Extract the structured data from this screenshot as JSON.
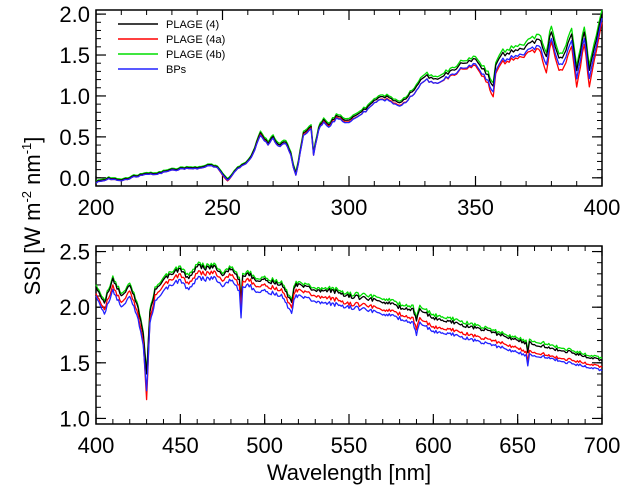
{
  "chart_data": [
    {
      "type": "line",
      "panel": "top",
      "xlim": [
        200,
        400
      ],
      "ylim": [
        -0.1,
        2.05
      ],
      "xticks": [
        200,
        250,
        300,
        350,
        400
      ],
      "xtick_labels": [
        "200",
        "250",
        "300",
        "350",
        "400"
      ],
      "yticks": [
        0.0,
        0.5,
        1.0,
        1.5,
        2.0
      ],
      "ytick_labels": [
        "0.0",
        "0.5",
        "1.0",
        "1.5",
        "2.0"
      ],
      "legend": {
        "placement": "top-left"
      },
      "series": [
        {
          "name": "PLAGE (4)",
          "color": "#000000"
        },
        {
          "name": "PLAGE (4a)",
          "color": "#ff0000"
        },
        {
          "name": "PLAGE (4b)",
          "color": "#00dd00"
        },
        {
          "name": "BPs",
          "color": "#2222ff"
        }
      ],
      "x": [
        200,
        205,
        210,
        215,
        220,
        225,
        230,
        235,
        240,
        245,
        248,
        250,
        252,
        254,
        256,
        260,
        262,
        265,
        268,
        270,
        272,
        275,
        277,
        278,
        279,
        280,
        282,
        285,
        286,
        288,
        290,
        292,
        295,
        300,
        305,
        310,
        315,
        320,
        325,
        330,
        335,
        340,
        345,
        350,
        355,
        357,
        358,
        360,
        365,
        370,
        375,
        378,
        380,
        383,
        385,
        388,
        390,
        393,
        395,
        397,
        400
      ],
      "y_plage4": [
        -0.05,
        0.0,
        -0.03,
        0.02,
        0.05,
        0.06,
        0.1,
        0.12,
        0.12,
        0.16,
        0.13,
        0.05,
        -0.02,
        0.05,
        0.12,
        0.2,
        0.3,
        0.55,
        0.42,
        0.5,
        0.4,
        0.45,
        0.3,
        0.15,
        0.05,
        0.2,
        0.55,
        0.62,
        0.3,
        0.6,
        0.72,
        0.65,
        0.75,
        0.7,
        0.8,
        0.95,
        1.0,
        0.9,
        1.05,
        1.25,
        1.2,
        1.3,
        1.4,
        1.45,
        1.25,
        1.1,
        1.35,
        1.5,
        1.55,
        1.6,
        1.7,
        1.5,
        1.8,
        1.45,
        1.5,
        1.75,
        1.3,
        1.8,
        1.3,
        1.6,
        2.0
      ],
      "y_plage4a": [
        -0.06,
        -0.01,
        -0.04,
        0.01,
        0.04,
        0.05,
        0.09,
        0.11,
        0.11,
        0.15,
        0.12,
        0.03,
        -0.04,
        0.04,
        0.11,
        0.19,
        0.28,
        0.53,
        0.4,
        0.48,
        0.38,
        0.43,
        0.28,
        0.13,
        0.03,
        0.18,
        0.53,
        0.6,
        0.28,
        0.58,
        0.7,
        0.63,
        0.73,
        0.68,
        0.77,
        0.92,
        0.97,
        0.87,
        1.0,
        1.2,
        1.15,
        1.24,
        1.33,
        1.37,
        1.15,
        0.97,
        1.25,
        1.4,
        1.45,
        1.5,
        1.58,
        1.3,
        1.68,
        1.3,
        1.35,
        1.6,
        1.1,
        1.65,
        1.1,
        1.45,
        1.9
      ],
      "y_plage4b": [
        -0.04,
        0.01,
        -0.02,
        0.03,
        0.06,
        0.07,
        0.11,
        0.13,
        0.13,
        0.17,
        0.14,
        0.06,
        -0.01,
        0.06,
        0.13,
        0.21,
        0.31,
        0.57,
        0.44,
        0.52,
        0.42,
        0.47,
        0.32,
        0.17,
        0.07,
        0.22,
        0.57,
        0.64,
        0.32,
        0.62,
        0.74,
        0.67,
        0.77,
        0.72,
        0.82,
        0.97,
        1.02,
        0.92,
        1.07,
        1.28,
        1.23,
        1.33,
        1.43,
        1.48,
        1.29,
        1.14,
        1.38,
        1.54,
        1.6,
        1.65,
        1.76,
        1.55,
        1.87,
        1.5,
        1.56,
        1.82,
        1.35,
        1.86,
        1.36,
        1.66,
        2.05
      ],
      "y_bps": [
        -0.06,
        -0.01,
        -0.04,
        0.01,
        0.04,
        0.05,
        0.09,
        0.11,
        0.11,
        0.15,
        0.12,
        0.04,
        -0.03,
        0.04,
        0.11,
        0.19,
        0.28,
        0.52,
        0.4,
        0.48,
        0.38,
        0.43,
        0.28,
        0.13,
        0.03,
        0.18,
        0.52,
        0.59,
        0.28,
        0.58,
        0.69,
        0.62,
        0.72,
        0.67,
        0.77,
        0.92,
        0.96,
        0.86,
        1.0,
        1.2,
        1.15,
        1.25,
        1.34,
        1.39,
        1.18,
        1.03,
        1.28,
        1.43,
        1.48,
        1.53,
        1.62,
        1.4,
        1.72,
        1.37,
        1.42,
        1.67,
        1.2,
        1.72,
        1.2,
        1.52,
        1.95
      ]
    },
    {
      "type": "line",
      "panel": "bottom",
      "xlim": [
        400,
        700
      ],
      "ylim": [
        0.95,
        2.55
      ],
      "xticks": [
        400,
        450,
        500,
        550,
        600,
        650,
        700
      ],
      "xtick_labels": [
        "400",
        "450",
        "500",
        "550",
        "600",
        "650",
        "700"
      ],
      "yticks": [
        1.0,
        1.5,
        2.0,
        2.5
      ],
      "ytick_labels": [
        "1.0",
        "1.5",
        "2.0",
        "2.5"
      ],
      "xlabel": "Wavelength [nm]",
      "ylabel": "SSI [W m-2 nm-1]",
      "series": [
        {
          "name": "PLAGE (4)",
          "color": "#000000"
        },
        {
          "name": "PLAGE (4a)",
          "color": "#ff0000"
        },
        {
          "name": "PLAGE (4b)",
          "color": "#00dd00"
        },
        {
          "name": "BPs",
          "color": "#2222ff"
        }
      ],
      "x": [
        400,
        405,
        410,
        415,
        420,
        425,
        428,
        430,
        432,
        435,
        440,
        445,
        450,
        455,
        460,
        465,
        470,
        475,
        480,
        485,
        486,
        487,
        490,
        495,
        500,
        510,
        516,
        518,
        520,
        530,
        540,
        550,
        560,
        570,
        580,
        588,
        590,
        592,
        600,
        610,
        620,
        630,
        640,
        650,
        655,
        656,
        657,
        660,
        670,
        680,
        690,
        700
      ],
      "y_plage4": [
        2.18,
        2.05,
        2.25,
        2.1,
        2.2,
        2.0,
        1.75,
        1.4,
        1.95,
        2.15,
        2.25,
        2.3,
        2.35,
        2.25,
        2.38,
        2.35,
        2.37,
        2.3,
        2.35,
        2.25,
        2.05,
        2.28,
        2.3,
        2.25,
        2.25,
        2.2,
        2.05,
        2.2,
        2.2,
        2.15,
        2.15,
        2.1,
        2.08,
        2.05,
        2.0,
        1.98,
        1.88,
        1.98,
        1.9,
        1.87,
        1.83,
        1.8,
        1.75,
        1.7,
        1.68,
        1.6,
        1.68,
        1.67,
        1.63,
        1.6,
        1.56,
        1.52
      ],
      "y_plage4a": [
        2.12,
        1.99,
        2.19,
        2.04,
        2.15,
        1.94,
        1.68,
        1.17,
        1.88,
        2.1,
        2.2,
        2.25,
        2.3,
        2.2,
        2.32,
        2.3,
        2.32,
        2.25,
        2.3,
        2.2,
        1.98,
        2.23,
        2.25,
        2.2,
        2.2,
        2.15,
        2.0,
        2.15,
        2.15,
        2.1,
        2.08,
        2.03,
        2.02,
        1.98,
        1.94,
        1.9,
        1.8,
        1.9,
        1.82,
        1.8,
        1.76,
        1.72,
        1.68,
        1.63,
        1.6,
        1.52,
        1.6,
        1.6,
        1.56,
        1.53,
        1.5,
        1.46
      ],
      "y_plage4b": [
        2.2,
        2.07,
        2.27,
        2.12,
        2.22,
        2.02,
        1.77,
        1.42,
        1.97,
        2.17,
        2.27,
        2.32,
        2.37,
        2.28,
        2.4,
        2.37,
        2.39,
        2.32,
        2.37,
        2.27,
        2.07,
        2.3,
        2.32,
        2.27,
        2.27,
        2.22,
        2.07,
        2.22,
        2.22,
        2.17,
        2.17,
        2.12,
        2.11,
        2.08,
        2.03,
        2.01,
        1.9,
        2.01,
        1.93,
        1.9,
        1.86,
        1.82,
        1.77,
        1.72,
        1.7,
        1.62,
        1.7,
        1.7,
        1.66,
        1.62,
        1.58,
        1.54
      ],
      "y_bps": [
        2.1,
        1.95,
        2.15,
        2.0,
        2.1,
        1.9,
        1.65,
        1.25,
        1.85,
        2.05,
        2.15,
        2.2,
        2.25,
        2.15,
        2.27,
        2.25,
        2.27,
        2.2,
        2.25,
        2.15,
        1.9,
        2.18,
        2.2,
        2.15,
        2.15,
        2.1,
        1.95,
        2.1,
        2.1,
        2.05,
        2.03,
        2.0,
        1.98,
        1.94,
        1.9,
        1.86,
        1.75,
        1.86,
        1.78,
        1.76,
        1.72,
        1.68,
        1.64,
        1.59,
        1.57,
        1.48,
        1.57,
        1.57,
        1.54,
        1.5,
        1.47,
        1.43
      ]
    }
  ],
  "ylabel_shared": {
    "main": "SSI [W m",
    "sup1": "-2",
    "mid": " nm",
    "sup2": "-1",
    "end": "]"
  }
}
